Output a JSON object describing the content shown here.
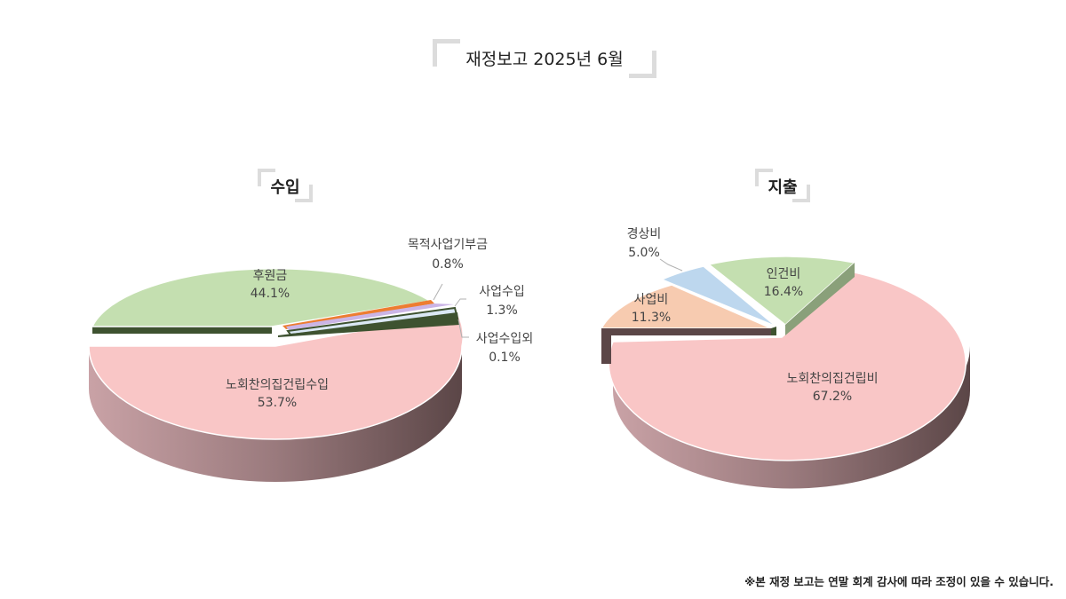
{
  "title": "재정보고 2025년 6월",
  "footnote": "※본 재정 보고는 연말 회계 감사에 따라 조정이 있을 수 있습니다.",
  "chart_data": [
    {
      "type": "pie",
      "title": "수입",
      "slices": [
        {
          "label": "노회찬의집건립수입",
          "value": 53.7,
          "display": "53.7%",
          "color": "#f9c6c6"
        },
        {
          "label": "후원금",
          "value": 44.1,
          "display": "44.1%",
          "color": "#c4dfb0"
        },
        {
          "label": "목적사업기부금",
          "value": 0.8,
          "display": "0.8%",
          "color": "#ed7d31"
        },
        {
          "label": "사업수입",
          "value": 1.3,
          "display": "1.3%",
          "color": "#cbb5e6"
        },
        {
          "label": "사업수입외",
          "value": 0.1,
          "display": "0.1%",
          "color": "#dbe8f5"
        }
      ]
    },
    {
      "type": "pie",
      "title": "지출",
      "slices": [
        {
          "label": "노회찬의집건립비",
          "value": 67.2,
          "display": "67.2%",
          "color": "#f9c6c6"
        },
        {
          "label": "사업비",
          "value": 11.3,
          "display": "11.3%",
          "color": "#f7cbb0"
        },
        {
          "label": "경상비",
          "value": 5.0,
          "display": "5.0%",
          "color": "#bdd7ee"
        },
        {
          "label": "인건비",
          "value": 16.4,
          "display": "16.4%",
          "color": "#c4dfb0"
        }
      ]
    }
  ]
}
